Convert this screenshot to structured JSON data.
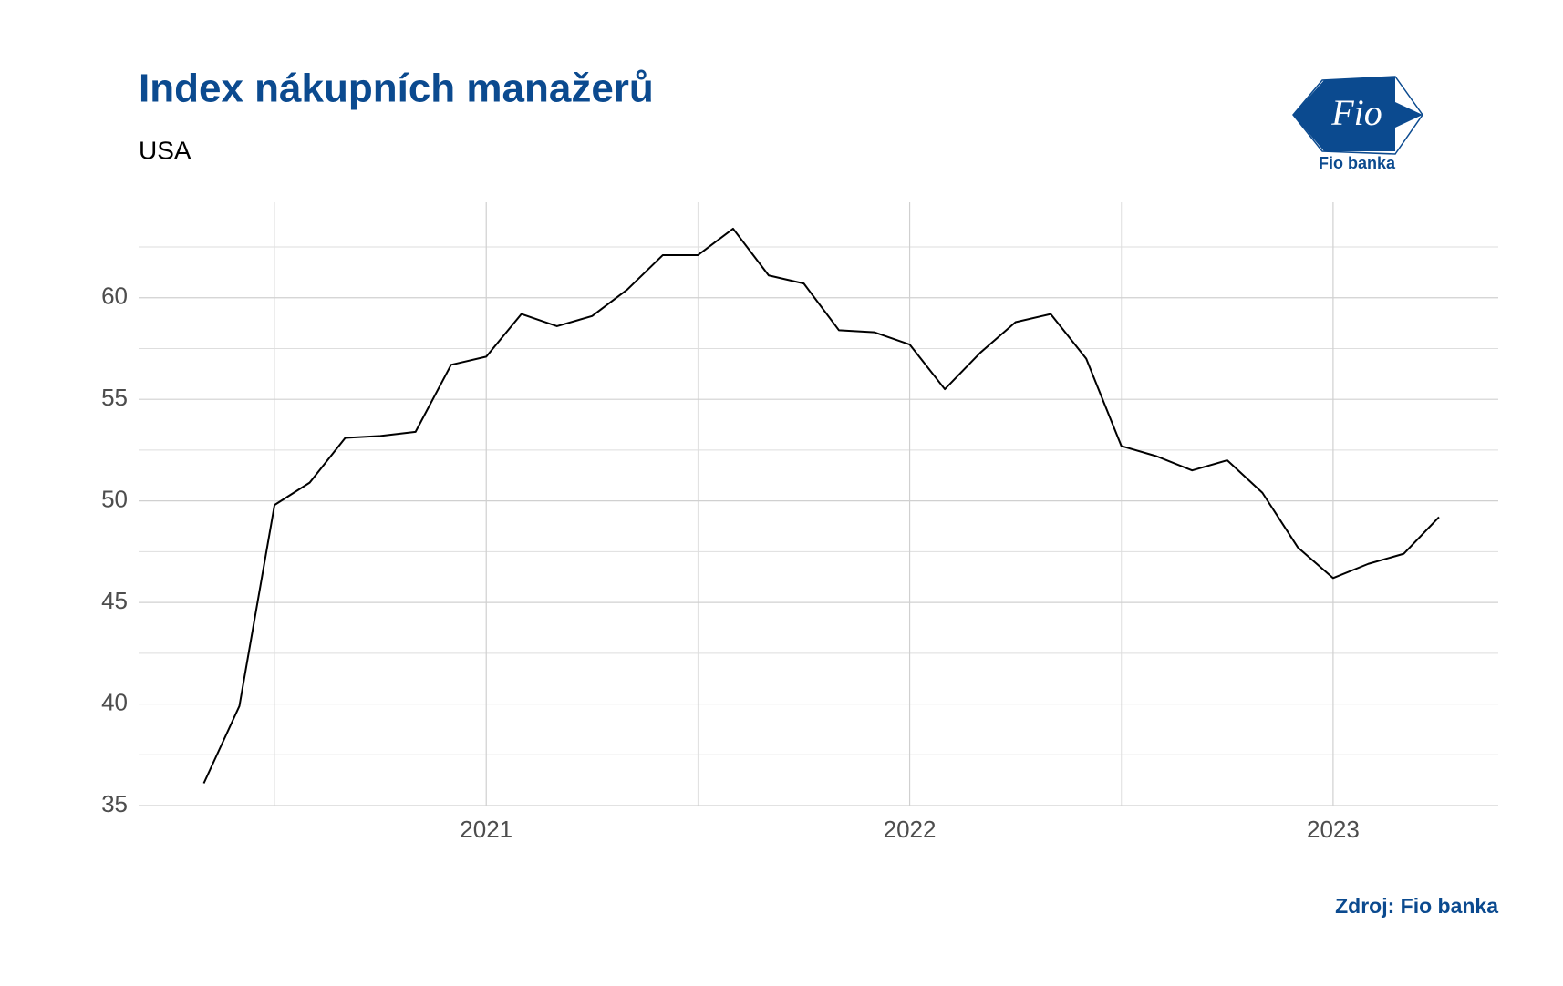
{
  "chart_data": {
    "type": "line",
    "title": "Index nákupních manažerů",
    "subtitle": "USA",
    "source": "Zdroj: Fio banka",
    "x": [
      2020.333,
      2020.417,
      2020.5,
      2020.583,
      2020.667,
      2020.75,
      2020.833,
      2020.917,
      2021.0,
      2021.083,
      2021.167,
      2021.25,
      2021.333,
      2021.417,
      2021.5,
      2021.583,
      2021.667,
      2021.75,
      2021.833,
      2021.917,
      2022.0,
      2022.083,
      2022.167,
      2022.25,
      2022.333,
      2022.417,
      2022.5,
      2022.583,
      2022.667,
      2022.75,
      2022.833,
      2022.917,
      2023.0,
      2023.083,
      2023.167,
      2023.25
    ],
    "series": [
      {
        "name": "USA",
        "color": "#000000",
        "values": [
          36.1,
          39.9,
          49.8,
          50.9,
          53.1,
          53.2,
          53.4,
          56.7,
          57.1,
          59.2,
          58.6,
          59.1,
          60.4,
          62.1,
          62.1,
          63.4,
          61.1,
          60.7,
          58.4,
          58.3,
          57.7,
          55.5,
          57.3,
          58.8,
          59.2,
          57.0,
          52.7,
          52.2,
          51.5,
          52.0,
          50.4,
          47.7,
          46.2,
          46.9,
          47.4,
          49.2
        ]
      }
    ],
    "xlim": [
      2020.179,
      2023.39
    ],
    "xticks": [
      2021,
      2022,
      2023
    ],
    "ylim": [
      35,
      64.7
    ],
    "yticks": [
      35,
      40,
      45,
      50,
      55,
      60
    ],
    "grid": true
  },
  "logo": {
    "mark": "Fio",
    "name": "Fio banka"
  }
}
